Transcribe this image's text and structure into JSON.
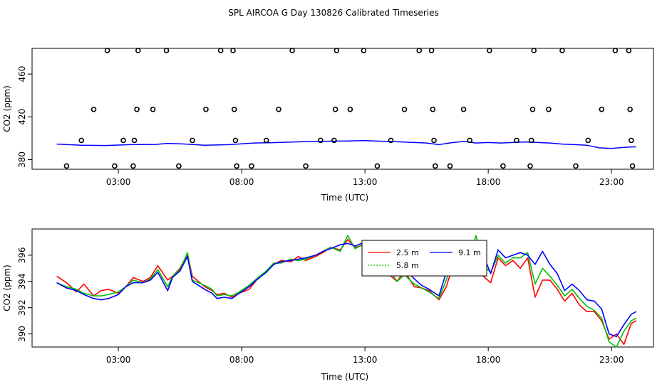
{
  "title": "SPL AIRCOA G  Day 130826  Calibrated Timeseries",
  "chart_data": [
    {
      "type": "scatter",
      "ylabel": "CO2 (ppm)",
      "xlabel": "Time (UTC)",
      "xlim": [
        -0.5,
        24.7
      ],
      "ylim": [
        371,
        484
      ],
      "x_ticks": [
        {
          "v": 3,
          "label": "03:00"
        },
        {
          "v": 8,
          "label": "08:00"
        },
        {
          "v": 13,
          "label": "13:00"
        },
        {
          "v": 18,
          "label": "18:00"
        },
        {
          "v": 23,
          "label": "23:00"
        }
      ],
      "y_ticks": [
        {
          "v": 380,
          "label": "380"
        },
        {
          "v": 420,
          "label": "420"
        },
        {
          "v": 460,
          "label": "460"
        }
      ],
      "colors": {
        "line": "#0000ff",
        "points": "#000000"
      },
      "points": [
        {
          "x": 0.9,
          "y": 374
        },
        {
          "x": 1.5,
          "y": 398
        },
        {
          "x": 2.0,
          "y": 427
        },
        {
          "x": 2.55,
          "y": 482
        },
        {
          "x": 2.85,
          "y": 374
        },
        {
          "x": 3.2,
          "y": 398
        },
        {
          "x": 3.65,
          "y": 398
        },
        {
          "x": 3.6,
          "y": 374
        },
        {
          "x": 3.75,
          "y": 427
        },
        {
          "x": 3.8,
          "y": 482
        },
        {
          "x": 4.4,
          "y": 427
        },
        {
          "x": 4.95,
          "y": 482
        },
        {
          "x": 5.45,
          "y": 374
        },
        {
          "x": 6.0,
          "y": 398
        },
        {
          "x": 6.55,
          "y": 427
        },
        {
          "x": 7.15,
          "y": 482
        },
        {
          "x": 7.65,
          "y": 482
        },
        {
          "x": 7.7,
          "y": 427
        },
        {
          "x": 7.75,
          "y": 398
        },
        {
          "x": 7.8,
          "y": 374
        },
        {
          "x": 8.4,
          "y": 374
        },
        {
          "x": 9.0,
          "y": 398
        },
        {
          "x": 9.5,
          "y": 427
        },
        {
          "x": 10.05,
          "y": 482
        },
        {
          "x": 10.6,
          "y": 374
        },
        {
          "x": 11.2,
          "y": 398
        },
        {
          "x": 11.75,
          "y": 398
        },
        {
          "x": 11.8,
          "y": 427
        },
        {
          "x": 11.85,
          "y": 482
        },
        {
          "x": 12.4,
          "y": 427
        },
        {
          "x": 12.95,
          "y": 482
        },
        {
          "x": 13.5,
          "y": 374
        },
        {
          "x": 14.05,
          "y": 398
        },
        {
          "x": 14.6,
          "y": 427
        },
        {
          "x": 15.2,
          "y": 482
        },
        {
          "x": 15.7,
          "y": 482
        },
        {
          "x": 15.75,
          "y": 427
        },
        {
          "x": 15.8,
          "y": 398
        },
        {
          "x": 15.85,
          "y": 374
        },
        {
          "x": 16.45,
          "y": 374
        },
        {
          "x": 17.0,
          "y": 427
        },
        {
          "x": 17.25,
          "y": 398
        },
        {
          "x": 18.05,
          "y": 482
        },
        {
          "x": 18.6,
          "y": 374
        },
        {
          "x": 19.15,
          "y": 398
        },
        {
          "x": 19.7,
          "y": 374
        },
        {
          "x": 19.75,
          "y": 398
        },
        {
          "x": 19.8,
          "y": 427
        },
        {
          "x": 19.85,
          "y": 482
        },
        {
          "x": 20.45,
          "y": 427
        },
        {
          "x": 21.0,
          "y": 482
        },
        {
          "x": 21.55,
          "y": 374
        },
        {
          "x": 22.05,
          "y": 398
        },
        {
          "x": 22.6,
          "y": 427
        },
        {
          "x": 23.15,
          "y": 482
        },
        {
          "x": 23.7,
          "y": 482
        },
        {
          "x": 23.75,
          "y": 427
        },
        {
          "x": 23.8,
          "y": 398
        },
        {
          "x": 23.85,
          "y": 374
        }
      ],
      "series": [
        {
          "name": "mean",
          "color": "#0000ff",
          "x": [
            0.5,
            1.5,
            2.5,
            3.5,
            4.5,
            5.0,
            5.5,
            6.5,
            7.5,
            8.5,
            9.5,
            10.5,
            11.5,
            12.5,
            13.0,
            13.5,
            14.5,
            15.5,
            16.0,
            16.5,
            17.0,
            17.5,
            18.0,
            18.5,
            19.0,
            19.5,
            20.0,
            20.5,
            21.0,
            21.5,
            22.0,
            22.5,
            23.0,
            23.5,
            24.0
          ],
          "y": [
            394.5,
            393.5,
            393.2,
            394.0,
            394.2,
            395.2,
            394.8,
            393.5,
            394.0,
            395.5,
            396.0,
            396.8,
            397.2,
            397.5,
            397.8,
            397.3,
            396.5,
            395.5,
            394.0,
            395.8,
            397.0,
            395.5,
            396.0,
            395.5,
            396.0,
            396.5,
            396.0,
            395.5,
            394.5,
            394.0,
            393.5,
            391.0,
            390.5,
            391.5,
            392.0
          ]
        }
      ]
    },
    {
      "type": "line",
      "ylabel": "CO2 (ppm)",
      "xlabel": "Time (UTC)",
      "xlim": [
        -0.5,
        24.7
      ],
      "ylim": [
        389.0,
        398.0
      ],
      "x_ticks": [
        {
          "v": 3,
          "label": "03:00"
        },
        {
          "v": 8,
          "label": "08:00"
        },
        {
          "v": 13,
          "label": "13:00"
        },
        {
          "v": 18,
          "label": "18:00"
        },
        {
          "v": 23,
          "label": "23:00"
        }
      ],
      "y_ticks": [
        {
          "v": 390,
          "label": "390"
        },
        {
          "v": 392,
          "label": "392"
        },
        {
          "v": 394,
          "label": "394"
        },
        {
          "v": 396,
          "label": "396"
        }
      ],
      "legend": {
        "placement": "top-center",
        "entries": [
          {
            "label": "2.5 m",
            "color": "#ff0000"
          },
          {
            "label": "5.8 m",
            "color": "#00c000"
          },
          {
            "label": "9.1 m",
            "color": "#0000ff"
          }
        ]
      },
      "x": [
        0.5,
        0.9,
        1.3,
        1.6,
        2.0,
        2.3,
        2.6,
        3.0,
        3.3,
        3.6,
        4.0,
        4.3,
        4.6,
        5.0,
        5.2,
        5.5,
        5.8,
        6.0,
        6.5,
        6.8,
        7.0,
        7.3,
        7.6,
        7.9,
        8.3,
        8.6,
        9.0,
        9.3,
        9.6,
        10.0,
        10.3,
        10.6,
        11.0,
        11.3,
        11.6,
        12.0,
        12.3,
        12.6,
        13.0,
        13.3,
        13.6,
        14.0,
        14.3,
        14.6,
        15.0,
        15.3,
        15.6,
        16.0,
        16.3,
        16.6,
        16.9,
        17.2,
        17.5,
        17.8,
        18.1,
        18.4,
        18.7,
        19.0,
        19.3,
        19.6,
        19.9,
        20.2,
        20.5,
        20.8,
        21.1,
        21.4,
        21.7,
        22.0,
        22.3,
        22.6,
        22.9,
        23.2,
        23.5,
        23.8,
        24.0
      ],
      "series": [
        {
          "name": "2.5 m",
          "color": "#ff0000",
          "y": [
            394.4,
            393.9,
            393.2,
            393.8,
            392.9,
            393.3,
            393.4,
            393.1,
            393.6,
            394.3,
            394.0,
            394.3,
            395.2,
            394.1,
            394.4,
            395.0,
            396.1,
            394.4,
            393.6,
            393.3,
            393.0,
            393.1,
            392.8,
            393.1,
            393.4,
            394.1,
            394.8,
            395.3,
            395.6,
            395.5,
            395.9,
            395.6,
            395.9,
            396.2,
            396.6,
            396.4,
            397.2,
            396.6,
            396.8,
            396.2,
            395.3,
            394.5,
            394.0,
            394.8,
            393.6,
            393.5,
            393.3,
            392.6,
            393.6,
            395.4,
            394.6,
            394.9,
            396.1,
            394.4,
            393.9,
            395.8,
            395.2,
            395.6,
            395.0,
            395.8,
            392.8,
            394.1,
            394.1,
            393.4,
            392.5,
            393.1,
            392.2,
            391.7,
            391.7,
            391.0,
            389.6,
            390.0,
            389.2,
            390.8,
            391.0
          ]
        },
        {
          "name": "5.8 m",
          "color": "#00c000",
          "y": [
            393.9,
            393.6,
            393.4,
            393.1,
            392.9,
            392.9,
            393.0,
            393.2,
            393.6,
            394.1,
            393.9,
            394.2,
            394.9,
            393.6,
            394.4,
            394.9,
            396.2,
            394.1,
            393.7,
            393.4,
            392.9,
            393.0,
            392.9,
            393.2,
            393.7,
            394.2,
            394.8,
            395.4,
            395.4,
            395.7,
            395.6,
            395.7,
            396.0,
            396.3,
            396.6,
            396.3,
            397.5,
            396.5,
            396.9,
            396.3,
            395.4,
            394.9,
            394.0,
            394.5,
            393.8,
            393.5,
            393.2,
            392.7,
            394.1,
            395.9,
            395.3,
            395.6,
            397.5,
            395.2,
            394.7,
            396.0,
            395.4,
            395.8,
            395.8,
            396.2,
            393.8,
            395.0,
            394.4,
            393.7,
            392.9,
            393.4,
            392.7,
            392.1,
            391.8,
            391.2,
            389.4,
            389.0,
            390.2,
            391.0,
            391.2
          ]
        },
        {
          "name": "9.1 m",
          "color": "#0000ff",
          "y": [
            393.9,
            393.5,
            393.3,
            393.0,
            392.7,
            392.6,
            392.7,
            393.0,
            393.6,
            393.9,
            393.9,
            394.1,
            394.7,
            393.3,
            394.3,
            394.8,
            395.9,
            394.0,
            393.4,
            393.1,
            392.7,
            392.8,
            392.7,
            393.1,
            393.6,
            394.1,
            394.7,
            395.3,
            395.5,
            395.6,
            395.7,
            395.8,
            396.0,
            396.3,
            396.5,
            396.8,
            396.9,
            396.7,
            397.0,
            396.6,
            396.1,
            395.4,
            394.7,
            395.0,
            394.2,
            393.7,
            393.4,
            392.9,
            394.7,
            396.2,
            395.7,
            396.5,
            396.8,
            396.0,
            394.6,
            396.4,
            395.8,
            396.0,
            396.2,
            396.0,
            395.3,
            396.3,
            395.3,
            394.6,
            393.3,
            393.8,
            393.3,
            392.6,
            392.5,
            391.9,
            390.0,
            389.8,
            390.7,
            391.5,
            391.7
          ]
        }
      ]
    }
  ]
}
